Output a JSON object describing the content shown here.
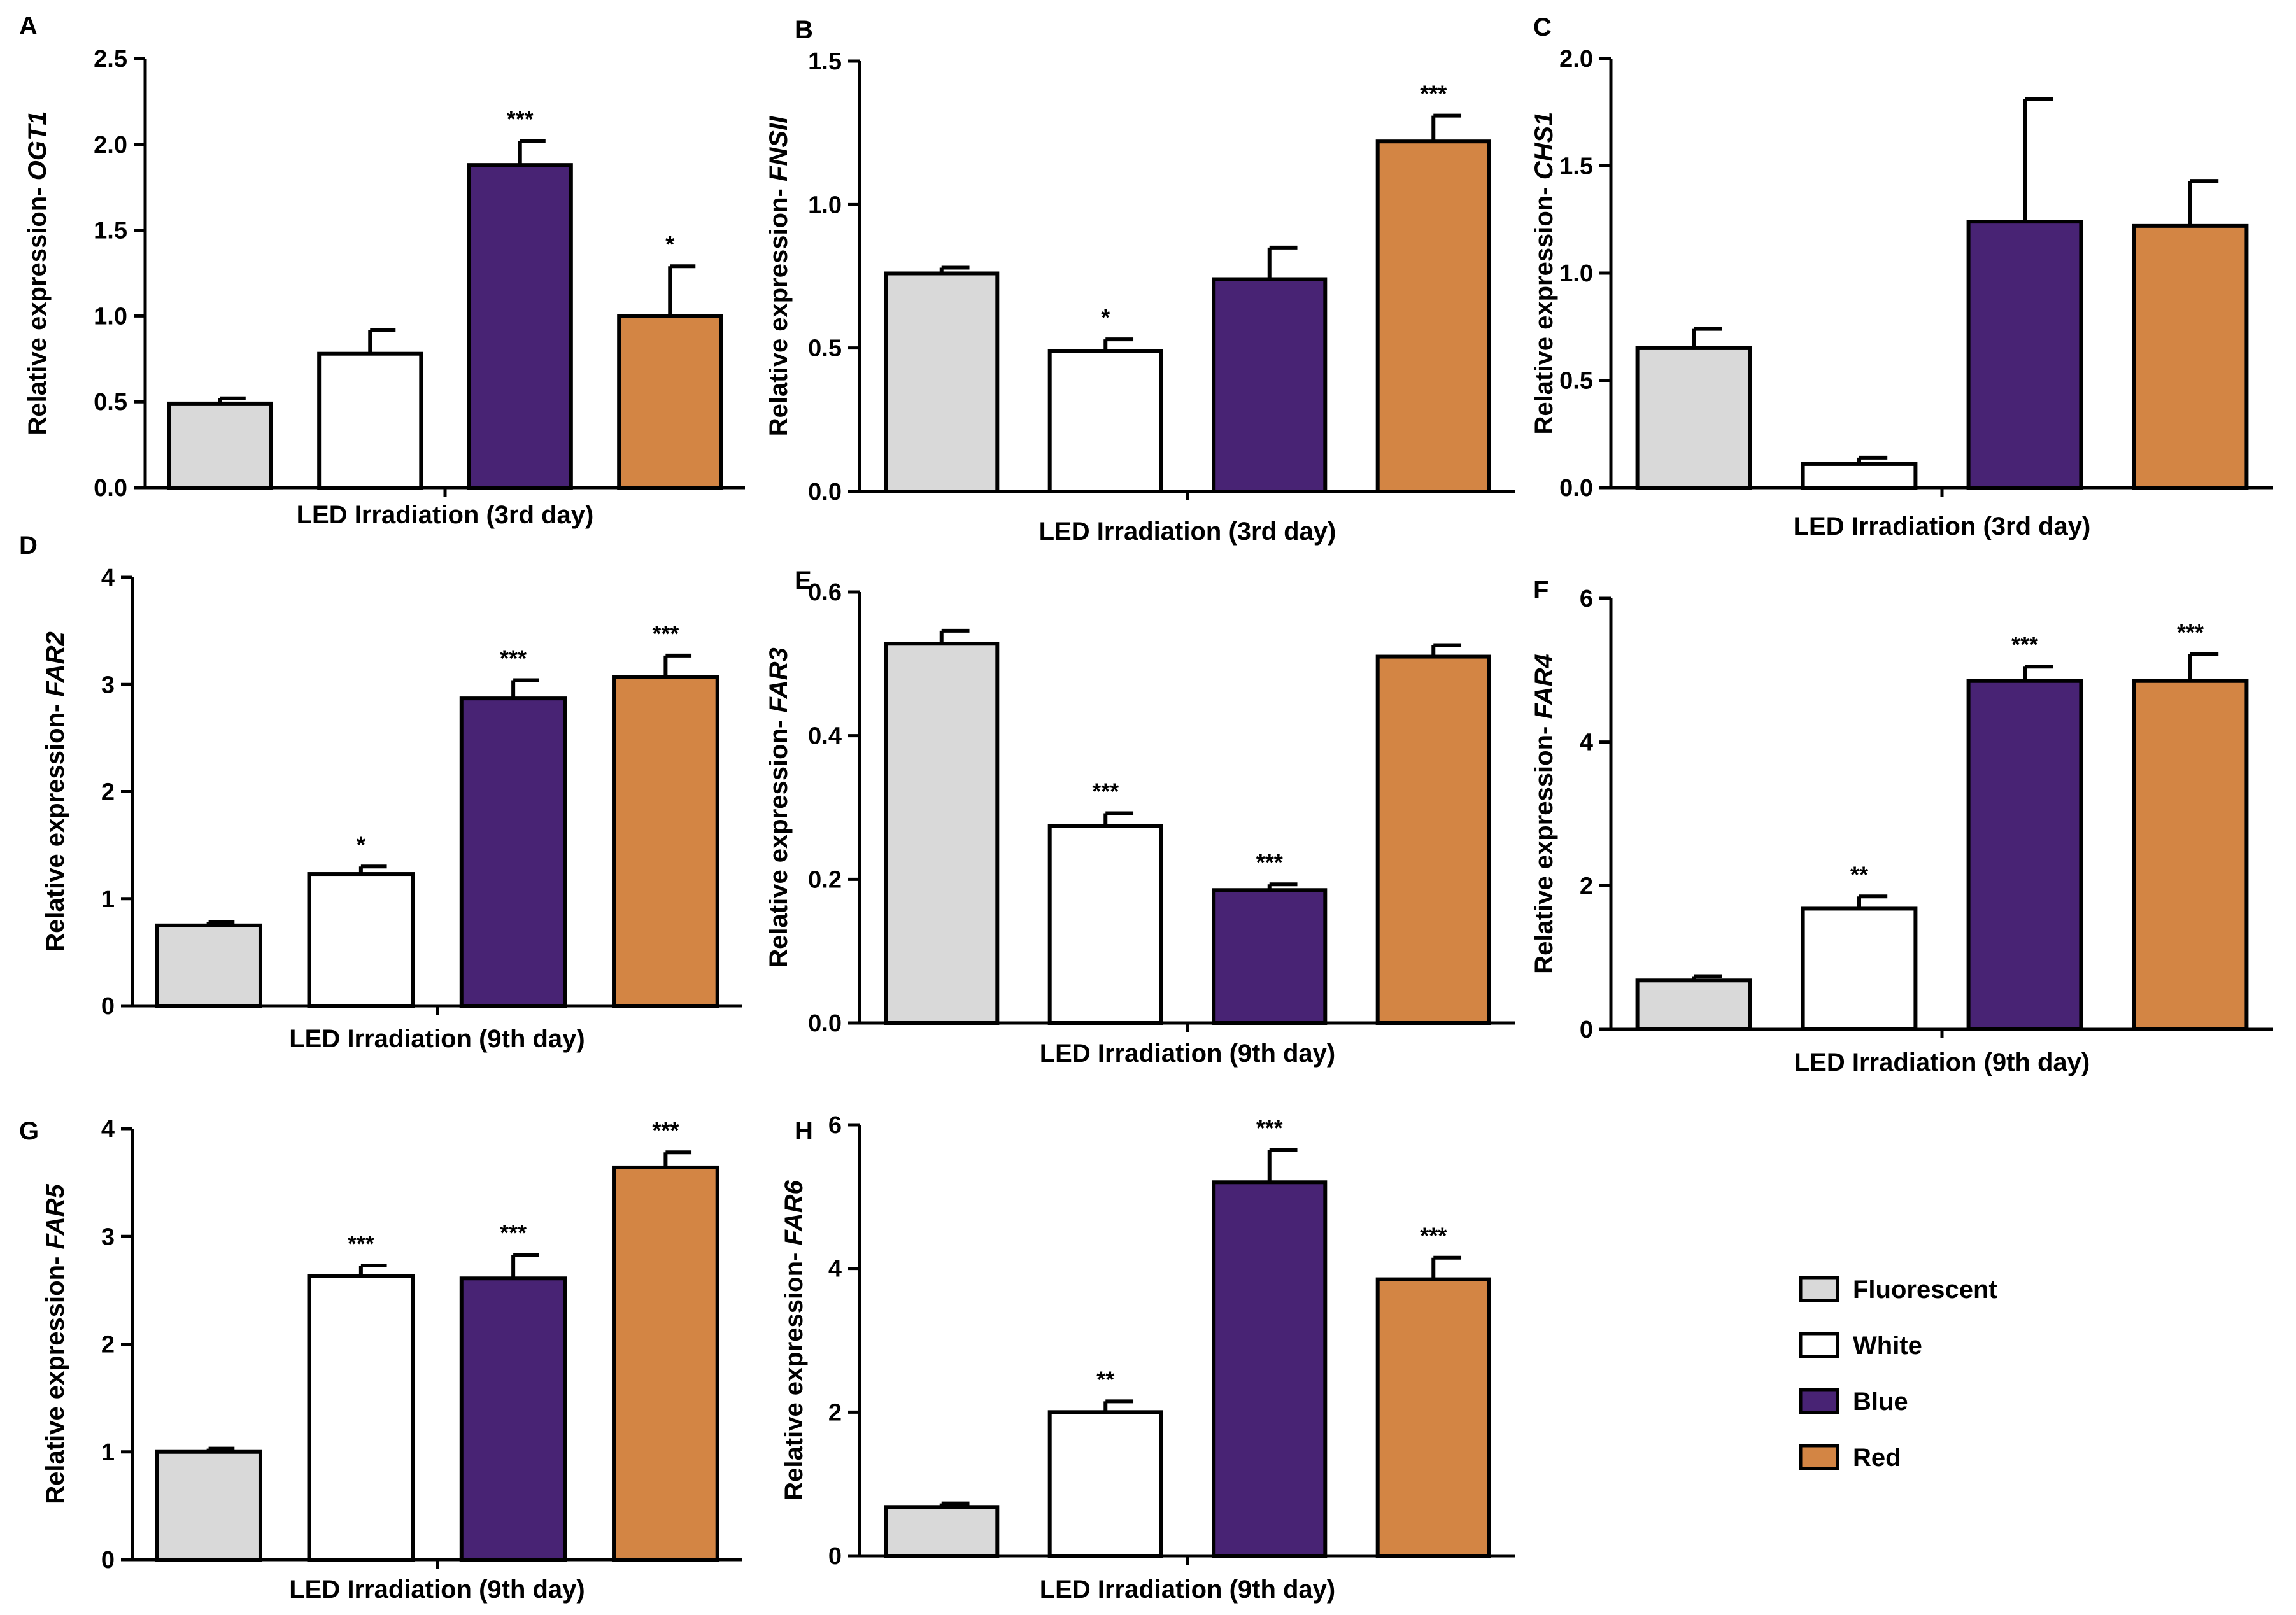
{
  "legend": {
    "items": [
      {
        "label": "Fluorescent",
        "color": "#d9d9d9"
      },
      {
        "label": "White",
        "color": "#ffffff"
      },
      {
        "label": "Blue",
        "color": "#482374"
      },
      {
        "label": "Red",
        "color": "#d38544"
      }
    ]
  },
  "chart_data": [
    {
      "panel": "A",
      "type": "bar",
      "categories": [
        "Fluorescent",
        "White",
        "Blue",
        "Red"
      ],
      "values": [
        0.49,
        0.78,
        1.88,
        1.0
      ],
      "errors": [
        0.03,
        0.14,
        0.14,
        0.29
      ],
      "significance": [
        "",
        "",
        "***",
        "*"
      ],
      "ylabel_prefix": "Relative expression- ",
      "gene": "OGT1",
      "xlabel": "LED Irradiation (3rd day)",
      "ylim": [
        0,
        2.5
      ],
      "ticks": [
        "0.0",
        "0.5",
        "1.0",
        "1.5",
        "2.0",
        "2.5"
      ]
    },
    {
      "panel": "B",
      "type": "bar",
      "categories": [
        "Fluorescent",
        "White",
        "Blue",
        "Red"
      ],
      "values": [
        0.76,
        0.49,
        0.74,
        1.22
      ],
      "errors": [
        0.02,
        0.04,
        0.11,
        0.09
      ],
      "significance": [
        "",
        "*",
        "",
        "***"
      ],
      "ylabel_prefix": "Relative expression- ",
      "gene": "FNSII",
      "xlabel": "LED Irradiation (3rd day)",
      "ylim": [
        0,
        1.5
      ],
      "ticks": [
        "0.0",
        "0.5",
        "1.0",
        "1.5"
      ]
    },
    {
      "panel": "C",
      "type": "bar",
      "categories": [
        "Fluorescent",
        "White",
        "Blue",
        "Red"
      ],
      "values": [
        0.65,
        0.11,
        1.24,
        1.22
      ],
      "errors": [
        0.09,
        0.03,
        0.57,
        0.21
      ],
      "significance": [
        "",
        "",
        "",
        ""
      ],
      "ylabel_prefix": "Relative expression- ",
      "gene": "CHS1",
      "xlabel": "LED Irradiation (3rd day)",
      "ylim": [
        0,
        2.0
      ],
      "ticks": [
        "0.0",
        "0.5",
        "1.0",
        "1.5",
        "2.0"
      ]
    },
    {
      "panel": "D",
      "type": "bar",
      "categories": [
        "Fluorescent",
        "White",
        "Blue",
        "Red"
      ],
      "values": [
        0.75,
        1.23,
        2.87,
        3.07
      ],
      "errors": [
        0.03,
        0.07,
        0.17,
        0.2
      ],
      "significance": [
        "",
        "*",
        "***",
        "***"
      ],
      "ylabel_prefix": "Relative expression- ",
      "gene": "FAR2",
      "xlabel": "LED Irradiation (9th day)",
      "ylim": [
        0,
        4
      ],
      "ticks": [
        "0",
        "1",
        "2",
        "3",
        "4"
      ]
    },
    {
      "panel": "E",
      "type": "bar",
      "categories": [
        "Fluorescent",
        "White",
        "Blue",
        "Red"
      ],
      "values": [
        0.528,
        0.274,
        0.185,
        0.51
      ],
      "errors": [
        0.018,
        0.018,
        0.008,
        0.016
      ],
      "significance": [
        "",
        "***",
        "***",
        ""
      ],
      "ylabel_prefix": "Relative expression- ",
      "gene": "FAR3",
      "xlabel": "LED Irradiation (9th day)",
      "ylim": [
        0,
        0.6
      ],
      "ticks": [
        "0.0",
        "0.2",
        "0.4",
        "0.6"
      ]
    },
    {
      "panel": "F",
      "type": "bar",
      "categories": [
        "Fluorescent",
        "White",
        "Blue",
        "Red"
      ],
      "values": [
        0.68,
        1.68,
        4.85,
        4.85
      ],
      "errors": [
        0.06,
        0.17,
        0.2,
        0.37
      ],
      "significance": [
        "",
        "**",
        "***",
        "***"
      ],
      "ylabel_prefix": "Relative expression- ",
      "gene": "FAR4",
      "xlabel": "LED Irradiation (9th day)",
      "ylim": [
        0,
        6
      ],
      "ticks": [
        "0",
        "2",
        "4",
        "6"
      ]
    },
    {
      "panel": "G",
      "type": "bar",
      "categories": [
        "Fluorescent",
        "White",
        "Blue",
        "Red"
      ],
      "values": [
        1.0,
        2.63,
        2.61,
        3.64
      ],
      "errors": [
        0.03,
        0.1,
        0.22,
        0.14
      ],
      "significance": [
        "",
        "***",
        "***",
        "***"
      ],
      "ylabel_prefix": "Relative expression- ",
      "gene": "FAR5",
      "xlabel": "LED Irradiation (9th day)",
      "ylim": [
        0,
        4
      ],
      "ticks": [
        "0",
        "1",
        "2",
        "3",
        "4"
      ]
    },
    {
      "panel": "H",
      "type": "bar",
      "categories": [
        "Fluorescent",
        "White",
        "Blue",
        "Red"
      ],
      "values": [
        0.68,
        2.0,
        5.2,
        3.85
      ],
      "errors": [
        0.05,
        0.15,
        0.45,
        0.3
      ],
      "significance": [
        "",
        "**",
        "***",
        "***"
      ],
      "ylabel_prefix": "Relative expression- ",
      "gene": "FAR6",
      "xlabel": "LED Irradiation (9th day)",
      "ylim": [
        0,
        6
      ],
      "ticks": [
        "0",
        "2",
        "4",
        "6"
      ]
    }
  ]
}
